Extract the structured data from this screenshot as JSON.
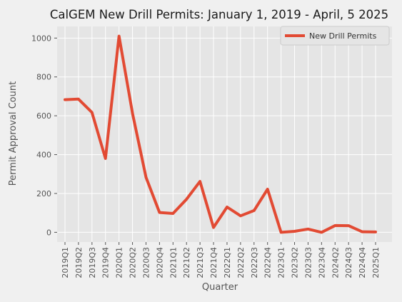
{
  "chart_data": {
    "type": "line",
    "title": "CalGEM New Drill Permits: January 1, 2019 - April, 5 2025",
    "xlabel": "Quarter",
    "ylabel": "Permit Approval Count",
    "categories": [
      "2019Q1",
      "2019Q2",
      "2019Q3",
      "2019Q4",
      "2020Q1",
      "2020Q2",
      "2020Q3",
      "2020Q4",
      "2021Q1",
      "2021Q2",
      "2021Q3",
      "2021Q4",
      "2022Q1",
      "2022Q2",
      "2022Q3",
      "2022Q4",
      "2023Q1",
      "2023Q2",
      "2023Q3",
      "2023Q4",
      "2024Q2",
      "2024Q3",
      "2024Q4",
      "2025Q1"
    ],
    "series": [
      {
        "name": "New Drill Permits",
        "color": "#e24a33",
        "values": [
          683,
          686,
          617,
          380,
          1010,
          612,
          283,
          102,
          97,
          170,
          262,
          25,
          130,
          85,
          112,
          222,
          0,
          5,
          17,
          0,
          35,
          34,
          3,
          2
        ]
      }
    ],
    "yticks": [
      0,
      200,
      400,
      600,
      800,
      1000
    ],
    "ylim": [
      -50,
      1060
    ],
    "grid": true,
    "legend": "top-right",
    "colors": {
      "figure_background": "#f0f0f0",
      "axes_background": "#e5e5e5",
      "grid": "#ffffff",
      "line": "#e24a33"
    }
  }
}
